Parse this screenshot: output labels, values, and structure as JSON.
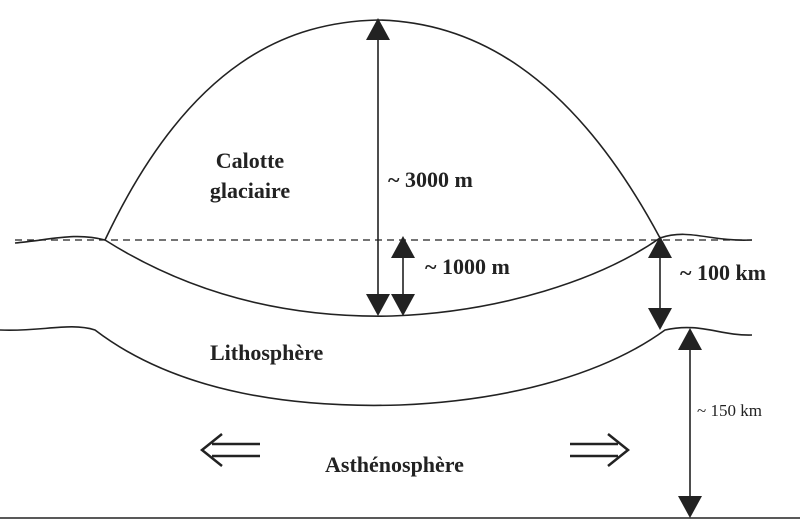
{
  "labels": {
    "ice_cap": [
      "Calotte",
      "glaciaire"
    ],
    "ice_thickness": "~ 3000 m",
    "depression": "~ 1000 m",
    "lithosphere_thickness": "~ 100 km",
    "lithosphere": "Lithosphère",
    "asthenosphere": "Asthénosphère",
    "asthenosphere_depth": "~ 150 km"
  }
}
